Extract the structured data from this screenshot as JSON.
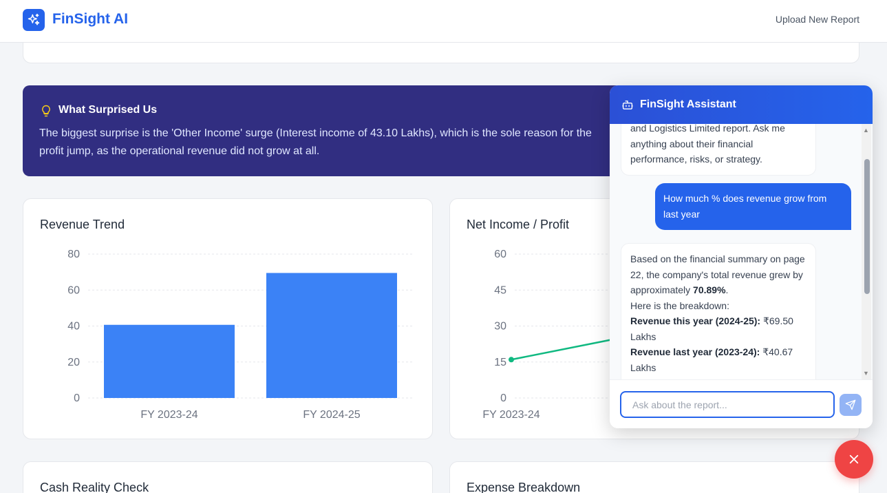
{
  "app": {
    "brand": "FinSight AI",
    "upload_label": "Upload New Report"
  },
  "surprise": {
    "title": "What Surprised Us",
    "text": "The biggest surprise is the 'Other Income' surge (Interest income of 43.10 Lakhs), which is the sole reason for the profit jump, as the operational revenue did not grow at all."
  },
  "revenue_card": {
    "title": "Revenue Trend"
  },
  "profit_card": {
    "title": "Net Income / Profit"
  },
  "cash_card": {
    "title": "Cash Reality Check"
  },
  "expense_card": {
    "title": "Expense Breakdown"
  },
  "chart_data": [
    {
      "type": "bar",
      "title": "Revenue Trend",
      "categories": [
        "FY 2023-24",
        "FY 2024-25"
      ],
      "values": [
        40.67,
        69.5
      ],
      "yticks": [
        0,
        20,
        40,
        60,
        80
      ],
      "ylim": [
        0,
        80
      ],
      "color": "#3b82f6"
    },
    {
      "type": "line",
      "title": "Net Income / Profit",
      "categories": [
        "FY 2023-24"
      ],
      "values": [
        16
      ],
      "yticks": [
        0,
        15,
        30,
        45,
        60
      ],
      "ylim": [
        0,
        60
      ],
      "color": "#10b981"
    }
  ],
  "chat": {
    "title": "FinSight Assistant",
    "intro_text": "and Logistics Limited report. Ask me anything about their financial performance, risks, or strategy.",
    "user_message": "How much % does revenue grow from last year",
    "bot_reply": {
      "line1": "Based on the financial summary on page 22, the company's total revenue grew by approximately ",
      "growth": "70.89%",
      "line1_end": ".",
      "line2": "Here is the breakdown:",
      "rev_this_label": "Revenue this year (2024-25):",
      "rev_this_value": " ₹69.50 Lakhs",
      "rev_last_label": "Revenue last year (2023-24):",
      "rev_last_value": " ₹40.67 Lakhs"
    },
    "input_placeholder": "Ask about the report..."
  }
}
